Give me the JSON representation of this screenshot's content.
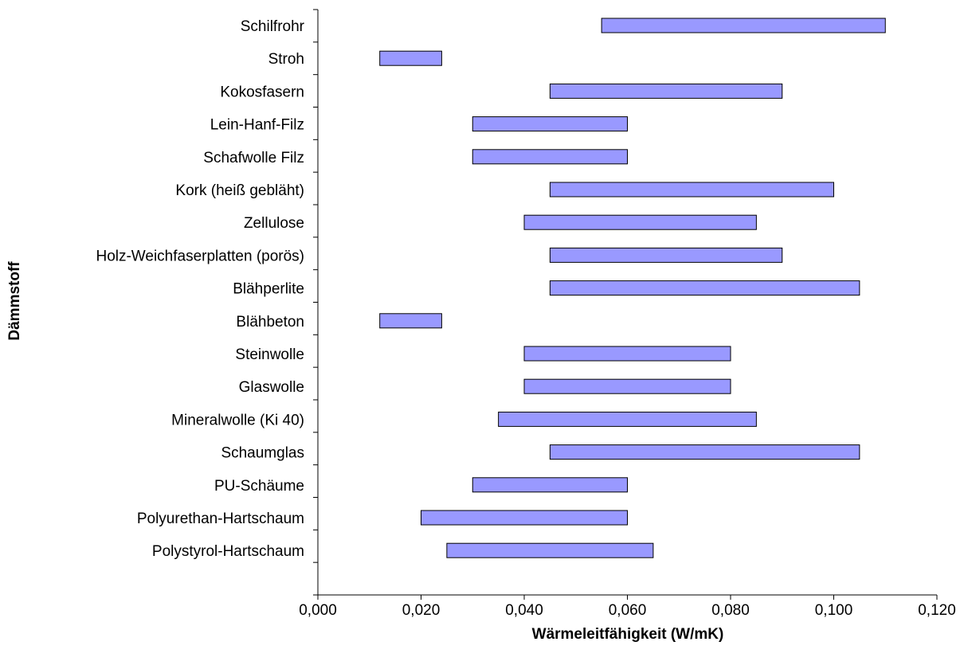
{
  "chart_data": {
    "type": "bar",
    "orientation": "horizontal",
    "bar_style": "range",
    "xlabel": "Wärmeleitfähigkeit (W/mK)",
    "ylabel": "Dämmstoff",
    "xlim": [
      0,
      0.12
    ],
    "x_ticks": [
      0,
      0.02,
      0.04,
      0.06,
      0.08,
      0.1,
      0.12
    ],
    "x_tick_labels": [
      "0,000",
      "0,020",
      "0,040",
      "0,060",
      "0,080",
      "0,100",
      "0,120"
    ],
    "grid": false,
    "bar_color": "#9999ff",
    "bar_edge_color": "#000000",
    "categories": [
      "Schilfrohr",
      "Stroh",
      "Kokosfasern",
      "Lein-Hanf-Filz",
      "Schafwolle Filz",
      "Kork (heiß gebläht)",
      "Zellulose",
      "Holz-Weichfaserplatten (porös)",
      "Blähperlite",
      "Blähbeton",
      "Steinwolle",
      "Glaswolle",
      "Mineralwolle (Ki 40)",
      "Schaumglas",
      "PU-Schäume",
      "Polyurethan-Hartschaum",
      "Polystyrol-Hartschaum"
    ],
    "ranges": [
      [
        0.055,
        0.11
      ],
      [
        0.012,
        0.024
      ],
      [
        0.045,
        0.09
      ],
      [
        0.03,
        0.06
      ],
      [
        0.03,
        0.06
      ],
      [
        0.045,
        0.1
      ],
      [
        0.04,
        0.085
      ],
      [
        0.045,
        0.09
      ],
      [
        0.045,
        0.105
      ],
      [
        0.012,
        0.024
      ],
      [
        0.04,
        0.08
      ],
      [
        0.04,
        0.08
      ],
      [
        0.035,
        0.085
      ],
      [
        0.045,
        0.105
      ],
      [
        0.03,
        0.06
      ],
      [
        0.02,
        0.06
      ],
      [
        0.025,
        0.065
      ]
    ]
  }
}
